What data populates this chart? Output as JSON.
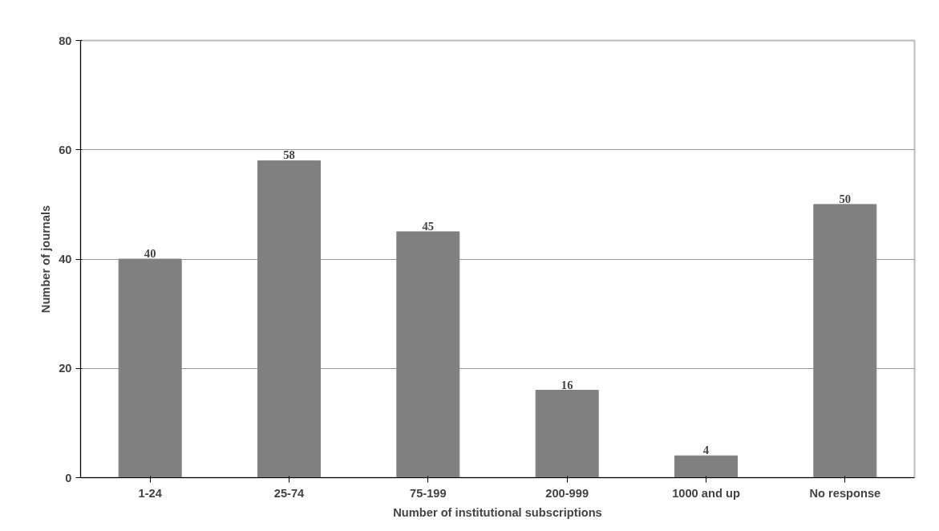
{
  "chart_data": {
    "type": "bar",
    "xlabel": "Number of institutional subscriptions",
    "ylabel": "Number of journals",
    "categories": [
      "1-24",
      "25-74",
      "75-199",
      "200-999",
      "1000 and up",
      "No response"
    ],
    "values": [
      40,
      58,
      45,
      16,
      4,
      50
    ],
    "color": "#808080",
    "data_labels": true,
    "ylim": [
      0,
      80
    ],
    "yticks": [
      0,
      20,
      40,
      60,
      80
    ],
    "grid": "y"
  }
}
